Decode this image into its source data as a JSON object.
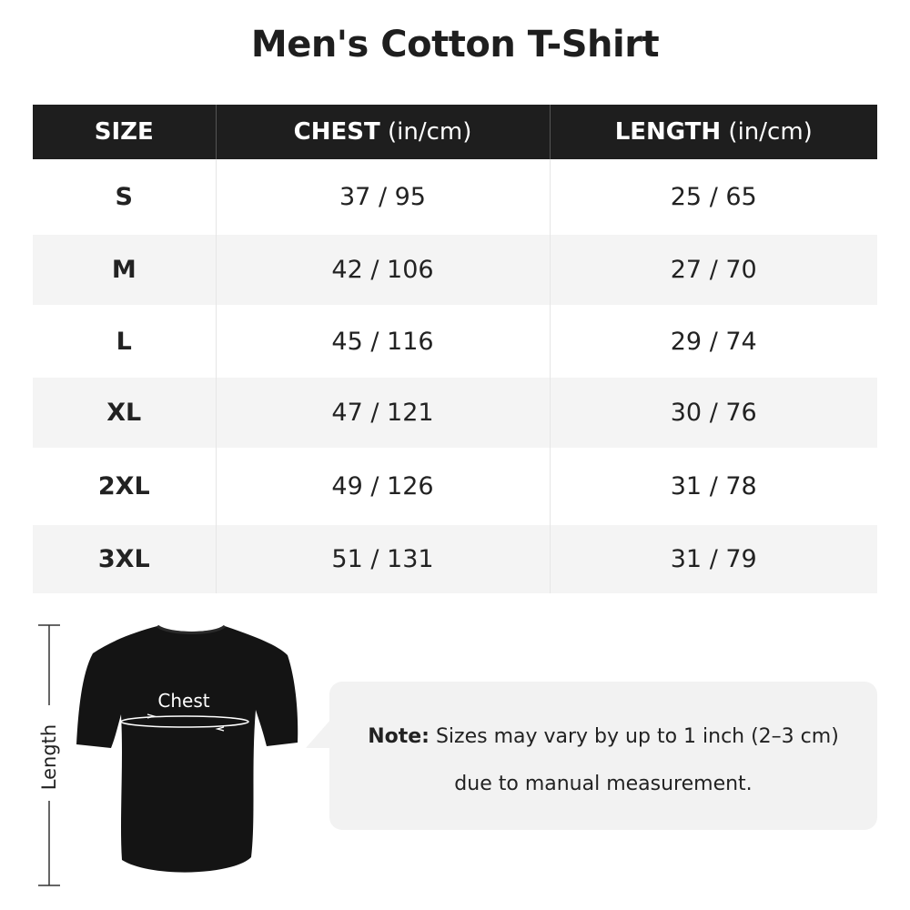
{
  "title": "Men's Cotton T-Shirt",
  "table": {
    "headers": [
      {
        "label": "SIZE",
        "unit": ""
      },
      {
        "label": "CHEST",
        "unit": " (in/cm)"
      },
      {
        "label": "LENGTH",
        "unit": " (in/cm)"
      }
    ],
    "rows": [
      [
        "S",
        "37 / 95",
        "25 / 65"
      ],
      [
        "M",
        "42 / 106",
        "27 / 70"
      ],
      [
        "L",
        "45 / 116",
        "29 / 74"
      ],
      [
        "XL",
        "47 / 121",
        "30 / 76"
      ],
      [
        "2XL",
        "49 / 126",
        "31 / 78"
      ],
      [
        "3XL",
        "51 / 131",
        "31 / 79"
      ]
    ]
  },
  "diagram": {
    "chest_label": "Chest",
    "length_label": "Length"
  },
  "note": {
    "bold": "Note:",
    "line1": " Sizes may vary by up to 1 inch (2–3 cm)",
    "line2": "due to manual measurement."
  },
  "colors": {
    "header_bg": "#1e1e1e",
    "stripe": "#f4f4f4",
    "bubble": "#f2f2f2"
  }
}
